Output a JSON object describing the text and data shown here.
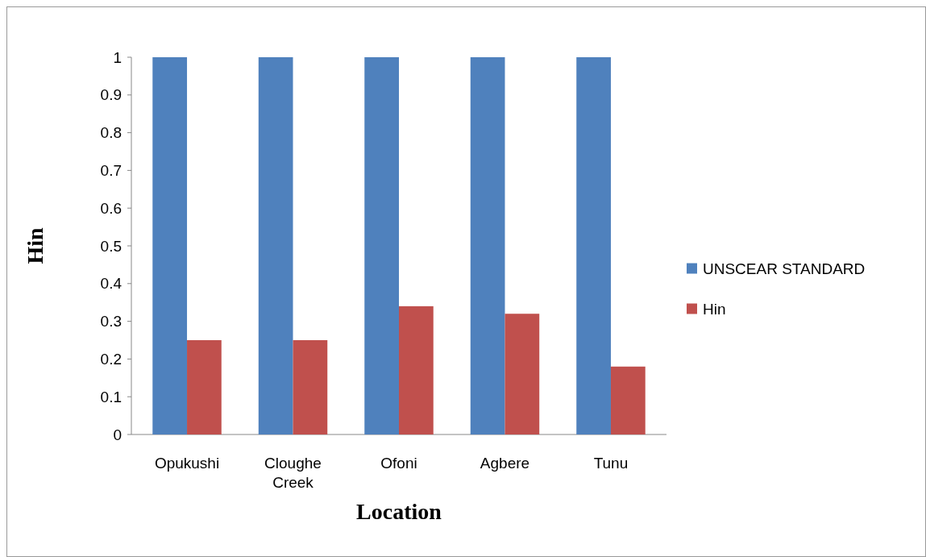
{
  "chart_data": {
    "type": "bar",
    "xlabel": "Location",
    "ylabel": "Hin",
    "categories": [
      "Opukushi",
      "Cloughe Creek",
      "Ofoni",
      "Agbere",
      "Tunu"
    ],
    "series": [
      {
        "name": "UNSCEAR STANDARD",
        "color": "#4f81bd",
        "values": [
          1,
          1,
          1,
          1,
          1
        ]
      },
      {
        "name": "Hin",
        "color": "#c0504d",
        "values": [
          0.25,
          0.25,
          0.34,
          0.32,
          0.18
        ]
      }
    ],
    "ylim": [
      0,
      1
    ],
    "yticks": [
      0,
      0.1,
      0.2,
      0.3,
      0.4,
      0.5,
      0.6,
      0.7,
      0.8,
      0.9,
      1
    ],
    "legend": "right",
    "grid": false
  }
}
